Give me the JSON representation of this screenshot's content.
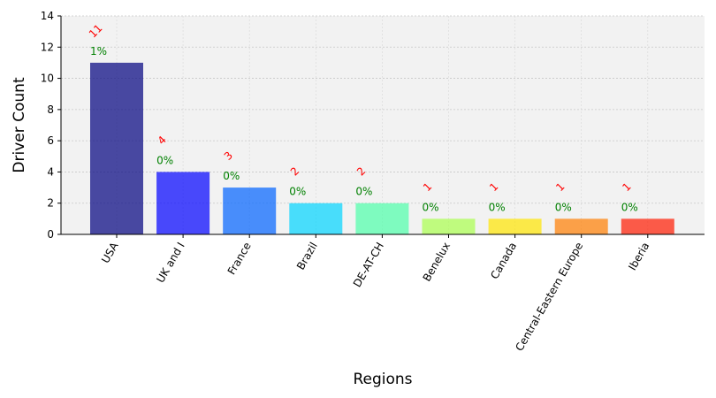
{
  "chart_data": {
    "type": "bar",
    "title": "",
    "xlabel": "Regions",
    "ylabel": "Driver Count",
    "categories": [
      "USA",
      "UK and I",
      "France",
      "Brazil",
      "DE-AT-CH",
      "Benelux",
      "Canada",
      "Central-Eastern Europe",
      "Iberia"
    ],
    "values": [
      11,
      4,
      3,
      2,
      2,
      1,
      1,
      1,
      1
    ],
    "count_labels": [
      "11",
      "4",
      "3",
      "2",
      "2",
      "1",
      "1",
      "1",
      "1"
    ],
    "percent_labels": [
      "1%",
      "0%",
      "0%",
      "0%",
      "0%",
      "0%",
      "0%",
      "0%",
      "0%"
    ],
    "bar_colors": [
      "#00007f",
      "#0000ff",
      "#0063ff",
      "#00d4ff",
      "#4dffaa",
      "#aaff4d",
      "#ffe500",
      "#ff7e00",
      "#ff1a00"
    ],
    "ylim": [
      0,
      14
    ],
    "yticks": [
      "0",
      "2",
      "4",
      "6",
      "8",
      "10",
      "12",
      "14"
    ],
    "grid": true,
    "plot_background": "#f2f2f2",
    "count_label_color": "#ff0000",
    "percent_label_color": "#008000"
  }
}
